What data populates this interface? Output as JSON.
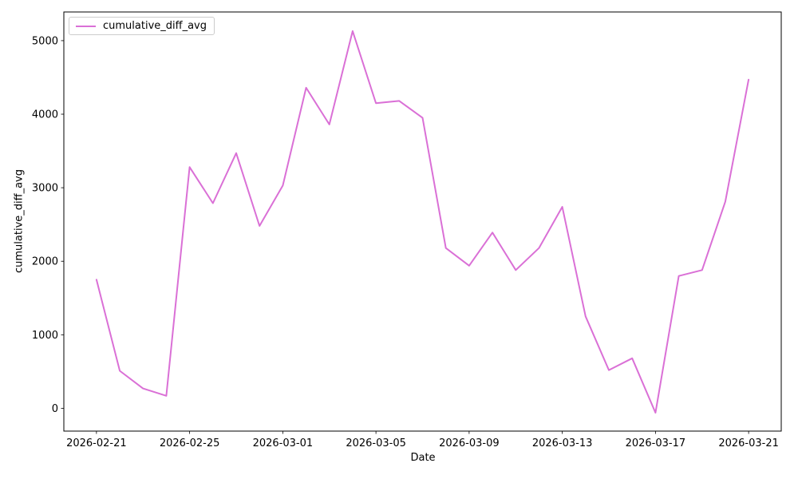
{
  "figure": {
    "background": "#ffffff",
    "frame_color": "#000000",
    "tick_color": "#000000"
  },
  "chart_data": {
    "type": "line",
    "title": "",
    "xlabel": "Date",
    "ylabel": "cumulative_diff_avg",
    "grid": false,
    "legend_position": "upper left",
    "legend_entries": [
      "cumulative_diff_avg"
    ],
    "x": [
      "2026-02-21",
      "2026-02-22",
      "2026-02-23",
      "2026-02-24",
      "2026-02-25",
      "2026-02-26",
      "2026-02-27",
      "2026-02-28",
      "2026-03-01",
      "2026-03-02",
      "2026-03-03",
      "2026-03-04",
      "2026-03-05",
      "2026-03-06",
      "2026-03-07",
      "2026-03-08",
      "2026-03-09",
      "2026-03-10",
      "2026-03-11",
      "2026-03-12",
      "2026-03-13",
      "2026-03-14",
      "2026-03-15",
      "2026-03-16",
      "2026-03-17",
      "2026-03-18",
      "2026-03-19",
      "2026-03-20",
      "2026-03-21"
    ],
    "series": [
      {
        "name": "cumulative_diff_avg",
        "color": "#da70d6",
        "line_width": 2,
        "values": [
          1750,
          510,
          270,
          170,
          3280,
          2790,
          3470,
          2480,
          3030,
          4360,
          3860,
          5130,
          4150,
          4180,
          3950,
          2180,
          1940,
          2390,
          1880,
          2180,
          2740,
          1250,
          520,
          680,
          -60,
          1800,
          1880,
          2810,
          4470
        ]
      }
    ],
    "x_tick_indices": [
      0,
      4,
      8,
      12,
      16,
      20,
      24,
      28
    ],
    "x_tick_labels": [
      "2026-02-21",
      "2026-02-25",
      "2026-03-01",
      "2026-03-05",
      "2026-03-09",
      "2026-03-13",
      "2026-03-17",
      "2026-03-21"
    ],
    "y_ticks": [
      0,
      1000,
      2000,
      3000,
      4000,
      5000
    ],
    "xlim_days": [
      -1.4,
      29.4
    ],
    "ylim": [
      -310,
      5390
    ]
  }
}
